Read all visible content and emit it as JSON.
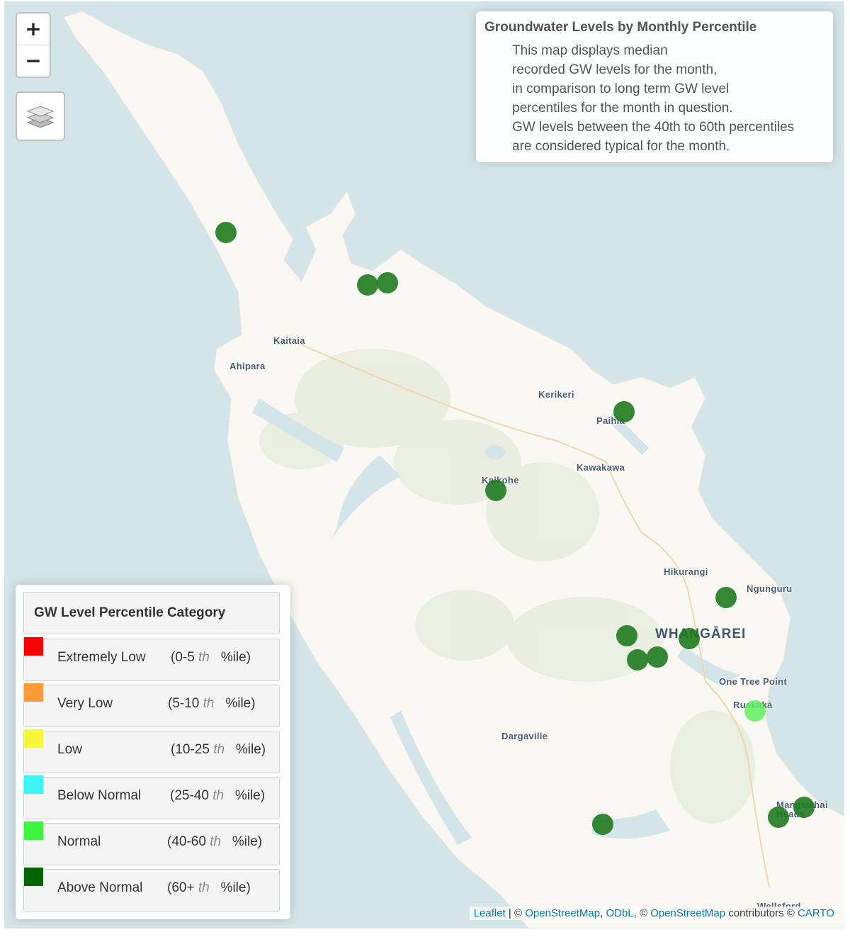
{
  "map": {
    "controls": {
      "zoom_in": "+",
      "zoom_out": "−",
      "layers_icon": "layers-icon"
    },
    "colors": {
      "water": "#d4e5ea",
      "land": "#faf8f3",
      "vegetation": "#e9eee0"
    },
    "places": [
      {
        "name": "Kaitaia"
      },
      {
        "name": "Ahipara"
      },
      {
        "name": "Kerikeri"
      },
      {
        "name": "Paihia"
      },
      {
        "name": "Kawakawa"
      },
      {
        "name": "Kaikohe"
      },
      {
        "name": "Hikurangi"
      },
      {
        "name": "Ngunguru"
      },
      {
        "name": "WHANGĀREI"
      },
      {
        "name": "One Tree Point"
      },
      {
        "name": "Ruakākā"
      },
      {
        "name": "Dargaville"
      },
      {
        "name": "Mangawhai Heads"
      },
      {
        "name": "Wellsford"
      }
    ],
    "monitoring_sites": [
      {
        "category": "Above Normal"
      },
      {
        "category": "Above Normal"
      },
      {
        "category": "Above Normal"
      },
      {
        "category": "Above Normal"
      },
      {
        "category": "Above Normal"
      },
      {
        "category": "Above Normal"
      },
      {
        "category": "Above Normal"
      },
      {
        "category": "Above Normal"
      },
      {
        "category": "Above Normal"
      },
      {
        "category": "Above Normal"
      },
      {
        "category": "Normal"
      },
      {
        "category": "Above Normal"
      },
      {
        "category": "Above Normal"
      },
      {
        "category": "Above Normal"
      }
    ],
    "marker_colors": {
      "Above Normal": "#1f7a1f",
      "Normal": "#5ef05e"
    }
  },
  "info": {
    "title": "Groundwater Levels by Monthly Percentile",
    "lines": [
      "This map displays median",
      "recorded GW levels for the month,",
      "in comparison to long term GW level",
      "percentiles for the month in question.",
      "GW levels between the 40th to 60th percentiles",
      "are considered typical for the month."
    ]
  },
  "legend": {
    "title": "GW Level Percentile Category",
    "items": [
      {
        "label": "Extremely Low",
        "range_open": "(0-5",
        "th": "th",
        "range_close": "%ile)",
        "color": "#ff0000"
      },
      {
        "label": "Very Low",
        "range_open": "(5-10",
        "th": "th",
        "range_close": "%ile)",
        "color": "#ff9a3c"
      },
      {
        "label": "Low",
        "range_open": "(10-25",
        "th": "th",
        "range_close": "%ile)",
        "color": "#f5f53a"
      },
      {
        "label": "Below Normal",
        "range_open": "(25-40",
        "th": "th",
        "range_close": "%ile)",
        "color": "#3df5f5"
      },
      {
        "label": "Normal",
        "range_open": "(40-60",
        "th": "th",
        "range_close": "%ile)",
        "color": "#3df53d"
      },
      {
        "label": "Above Normal",
        "range_open": "(60+",
        "th": "th",
        "range_close": "%ile)",
        "color": "#006400"
      }
    ]
  },
  "attribution": {
    "leaflet": "Leaflet",
    "sep1": " | © ",
    "osm1": "OpenStreetMap",
    "comma": ", ",
    "odbl": "ODbL",
    "sep2": ", © ",
    "osm2": "OpenStreetMap",
    "contrib": " contributors © ",
    "carto": "CARTO"
  }
}
